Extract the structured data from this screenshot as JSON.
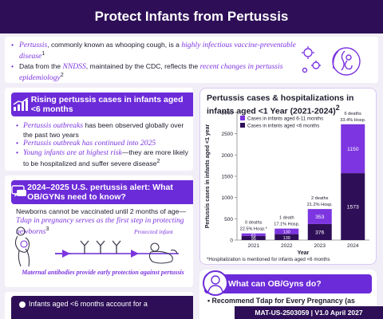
{
  "header": {
    "title": "Protect Infants from Pertussis"
  },
  "intro": {
    "b1_a": "Pertussis",
    "b1_b": ", commonly known as whooping cough, is a ",
    "b1_c": "highly infectious vaccine-preventable disease",
    "b1_sup": "1",
    "b2_a": "Data from the ",
    "b2_b": "NNDSS",
    "b2_c": ", maintained by the CDC, reflects the ",
    "b2_d": "recent changes in pertussis epidemiology",
    "b2_sup": "2"
  },
  "rising": {
    "title": "Rising pertussis cases in infants aged <6 months",
    "b1_a": "Pertussis outbreaks",
    "b1_b": " has been observed globally over the past two years",
    "b2": "Pertussis outbreak has continued into 2025",
    "b3_a": "Young infants are at highest risk",
    "b3_b": "—they are more likely to be hospitalized and suffer severe disease",
    "b3_sup": "2"
  },
  "alert": {
    "title": "2024–2025 U.S. pertussis alert: What OB/GYNs need to know?",
    "text_a": "Newborns cannot be vaccinated until 2 months of age—",
    "text_b": "Tdap in pregnancy serves as the first step in protecting newborns",
    "text_sup": "3",
    "protected_infant": "Protected infant",
    "caption": "Maternal antibodies provide early protection against pertussis"
  },
  "bottom_left": {
    "text": "Infants aged <6 months account for a"
  },
  "chart_card": {
    "title": "Pertussis cases & hospitalizations in infants aged <1 Year (2021-2024)",
    "title_sup": "2",
    "footnote": "*Hospitalization is mentioned for infants aged <6 months"
  },
  "chart_data": {
    "type": "bar",
    "stacked": true,
    "categories": [
      "2021",
      "2022",
      "2023",
      "2024"
    ],
    "series": [
      {
        "name": "Cases in infants aged <6 months",
        "values": [
          95,
          139,
          376,
          1573
        ],
        "color": "#2e0f57"
      },
      {
        "name": "Cases in infants aged 6-11 months",
        "values": [
          61,
          130,
          353,
          1150
        ],
        "color": "#7c35e0"
      }
    ],
    "annotations": [
      {
        "line1": "0 deaths",
        "line2": "22.5% Hosp.*"
      },
      {
        "line1": "1 death",
        "line2": "17.1% Hosp."
      },
      {
        "line1": "2 deaths",
        "line2": "21.2% Hosp."
      },
      {
        "line1": "6 deaths",
        "line2": "33.4% Hosp."
      }
    ],
    "xlabel": "Year",
    "ylabel": "Pertussis cases in infants aged <1 year",
    "ylim": [
      0,
      3000
    ],
    "yticks": [
      0,
      500,
      1000,
      1500,
      2000,
      2500,
      3000
    ],
    "legend": "top-left"
  },
  "obgyn": {
    "title": "What can OB/Gyns do?",
    "text": "• Recommend Tdap for Every Pregnancy (as"
  },
  "footer": {
    "code": "MAT-US-2503059 | V1.0 April 2027"
  }
}
